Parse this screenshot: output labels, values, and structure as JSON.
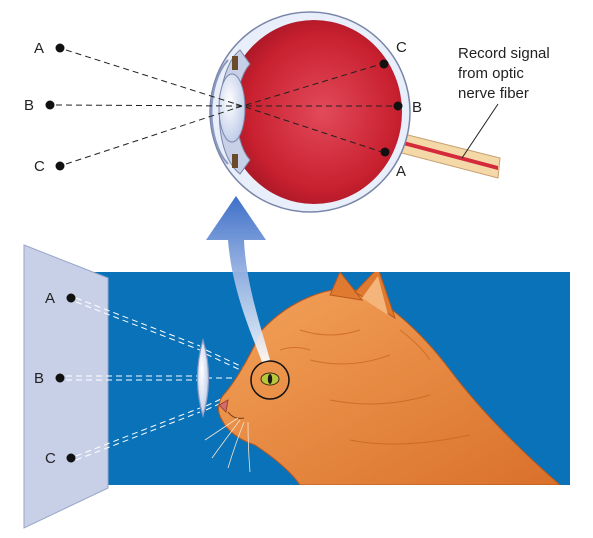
{
  "colors": {
    "background": "#ffffff",
    "screen": "#c8d0e8",
    "blue_field": "#0a72b8",
    "sclera": "#e8eefa",
    "eye_interior": "#d42a3c",
    "lens": "#d6def2",
    "nerve": "#f4d8a8",
    "cat_fur": "#e8843a",
    "arrow": "#4a7cd0",
    "dot": "#111111"
  },
  "eye_labels": {
    "left": [
      "A",
      "B",
      "C"
    ],
    "retina": [
      "C",
      "B",
      "A"
    ]
  },
  "screen_labels": [
    "A",
    "B",
    "C"
  ],
  "callout": {
    "lines": [
      "Record signal",
      "from optic",
      "nerve fiber"
    ]
  },
  "icons": {
    "eyeball": "eyeball-cross-section",
    "cat": "cat-head-profile",
    "lens": "biconvex-lens",
    "arrow": "upward-arrow"
  }
}
